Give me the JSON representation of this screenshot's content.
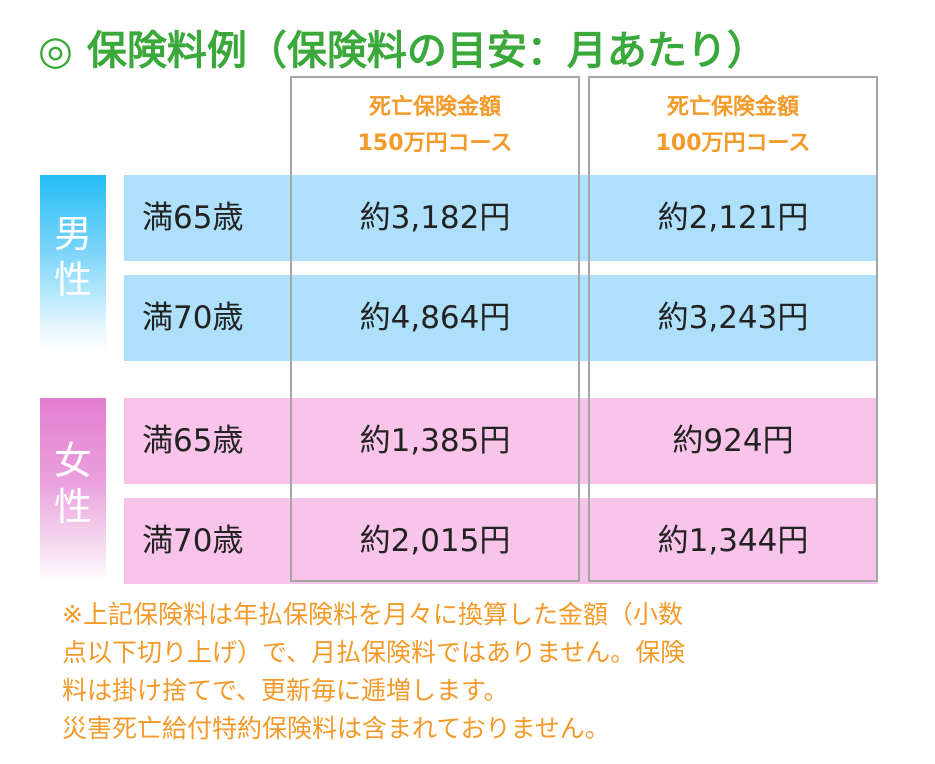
{
  "title": "◎ 保険料例（保険料の目安：月あたり）",
  "columns": [
    {
      "line1": "死亡保険金額",
      "line2": "150万円コース"
    },
    {
      "line1": "死亡保険金額",
      "line2": "100万円コース"
    }
  ],
  "groups": [
    {
      "gender_chars": [
        "男",
        "性"
      ],
      "rows": [
        {
          "age": "満65歳",
          "values": [
            "約3,182円",
            "約2,121円"
          ]
        },
        {
          "age": "満70歳",
          "values": [
            "約4,864円",
            "約3,243円"
          ]
        }
      ]
    },
    {
      "gender_chars": [
        "女",
        "性"
      ],
      "rows": [
        {
          "age": "満65歳",
          "values": [
            "約1,385円",
            "約924円"
          ]
        },
        {
          "age": "満70歳",
          "values": [
            "約2,015円",
            "約1,344円"
          ]
        }
      ]
    }
  ],
  "notes": [
    "※上記保険料は年払保険料を月々に換算した金額（小数",
    "点以下切り上げ）で、月払保険料ではありません。保険",
    "料は掛け捨てで、更新毎に逓増します。",
    "災害死亡給付特約保険料は含まれておりません。"
  ],
  "colors": {
    "title": "#3aa83a",
    "header_text": "#f39a2a",
    "male_band": "#aee0fb",
    "female_band": "#f9c4ea",
    "note_text": "#f39a2a"
  }
}
